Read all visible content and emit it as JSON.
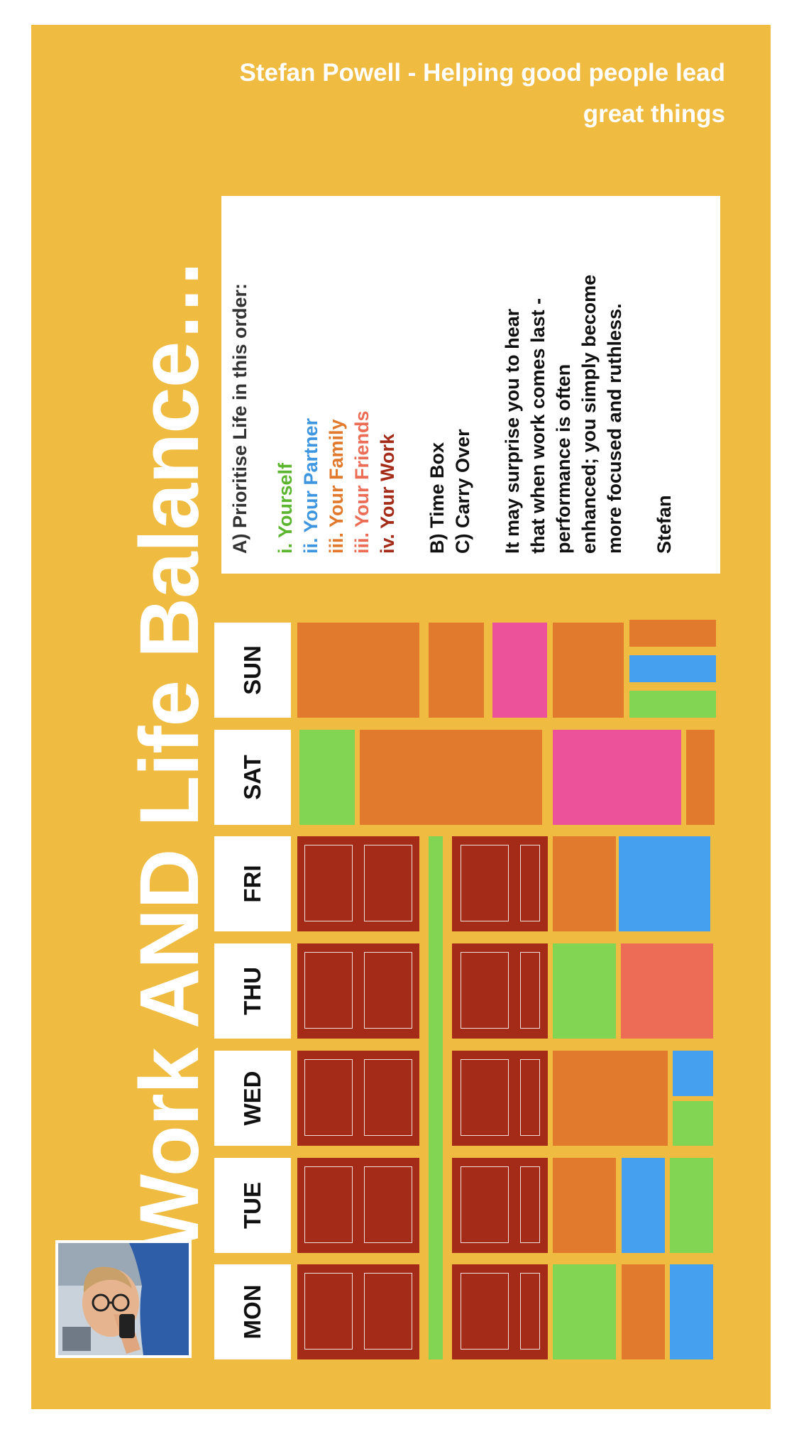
{
  "colors": {
    "background": "#EFBB40",
    "work": "#A52B19",
    "self": "#82D552",
    "partner": "#45A0F0",
    "family": "#E27A2D",
    "friends": "#EC6C56",
    "pink": "#EC529A"
  },
  "header": {
    "line1": "Stefan Powell -  Helping good people lead",
    "line2": "great things"
  },
  "title": "Work AND Life Balance…",
  "days": [
    "MON",
    "TUE",
    "WED",
    "THU",
    "FRI",
    "SAT",
    "SUN"
  ],
  "textbox": {
    "heading": "A) Prioritise Life in this order:",
    "priorities": [
      {
        "label": "i. Yourself",
        "color": "#5BB52E"
      },
      {
        "label": "ii. Your Partner",
        "color": "#3E96E0"
      },
      {
        "label": "iii. Your Family",
        "color": "#E27A2D"
      },
      {
        "label": "iii. Your Friends",
        "color": "#EC6C56"
      },
      {
        "label": "iv. Your Work",
        "color": "#A52B19"
      }
    ],
    "point_b": "B) Time Box",
    "point_c": "C) Carry Over",
    "message": [
      "It may surprise you to hear",
      "that when work comes last -",
      "performance is often",
      "enhanced; you simply become",
      "more focused and ruthless."
    ],
    "signature": "Stefan"
  }
}
